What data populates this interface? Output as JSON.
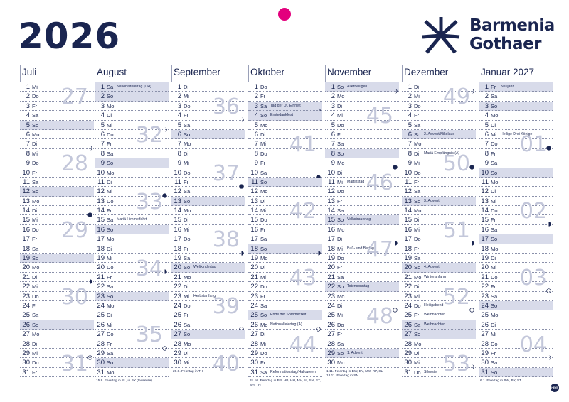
{
  "year": "2026",
  "brand": {
    "line1": "Barmenia",
    "line2": "Gothaer"
  },
  "publisher": "HEYE",
  "colors": {
    "navy": "#1a2550",
    "highlight": "#d8dbea",
    "week_number": "#c3c7da",
    "punch_hole": "#e3007d"
  },
  "months": [
    {
      "name": "Juli",
      "days": [
        {
          "n": "1",
          "w": "Mi"
        },
        {
          "n": "2",
          "w": "Do"
        },
        {
          "n": "3",
          "w": "Fr"
        },
        {
          "n": "4",
          "w": "Sa"
        },
        {
          "n": "5",
          "w": "So",
          "hl": true
        },
        {
          "n": "6",
          "w": "Mo"
        },
        {
          "n": "7",
          "w": "Di",
          "moon": "waning"
        },
        {
          "n": "8",
          "w": "Mi"
        },
        {
          "n": "9",
          "w": "Do"
        },
        {
          "n": "10",
          "w": "Fr"
        },
        {
          "n": "11",
          "w": "Sa"
        },
        {
          "n": "12",
          "w": "So",
          "hl": true
        },
        {
          "n": "13",
          "w": "Mo"
        },
        {
          "n": "14",
          "w": "Di",
          "moon": "new"
        },
        {
          "n": "15",
          "w": "Mi"
        },
        {
          "n": "16",
          "w": "Do"
        },
        {
          "n": "17",
          "w": "Fr"
        },
        {
          "n": "18",
          "w": "Sa"
        },
        {
          "n": "19",
          "w": "So",
          "hl": true
        },
        {
          "n": "20",
          "w": "Mo"
        },
        {
          "n": "21",
          "w": "Di",
          "moon": "waxing"
        },
        {
          "n": "22",
          "w": "Mi"
        },
        {
          "n": "23",
          "w": "Do"
        },
        {
          "n": "24",
          "w": "Fr"
        },
        {
          "n": "25",
          "w": "Sa"
        },
        {
          "n": "26",
          "w": "So",
          "hl": true
        },
        {
          "n": "27",
          "w": "Mo"
        },
        {
          "n": "28",
          "w": "Di"
        },
        {
          "n": "29",
          "w": "Mi",
          "moon": "full"
        },
        {
          "n": "30",
          "w": "Do"
        },
        {
          "n": "31",
          "w": "Fr"
        }
      ],
      "weeks": [
        {
          "label": "27",
          "row": 1
        },
        {
          "label": "28",
          "row": 8
        },
        {
          "label": "29",
          "row": 15
        },
        {
          "label": "30",
          "row": 22
        },
        {
          "label": "31",
          "row": 29
        }
      ],
      "note": ""
    },
    {
      "name": "August",
      "days": [
        {
          "n": "1",
          "w": "Sa",
          "hol": "Nationalfeiertag (CH)",
          "hl": true
        },
        {
          "n": "2",
          "w": "So",
          "hl": true
        },
        {
          "n": "3",
          "w": "Mo"
        },
        {
          "n": "4",
          "w": "Di"
        },
        {
          "n": "5",
          "w": "Mi",
          "moon": "waning"
        },
        {
          "n": "6",
          "w": "Do"
        },
        {
          "n": "7",
          "w": "Fr"
        },
        {
          "n": "8",
          "w": "Sa"
        },
        {
          "n": "9",
          "w": "So",
          "hl": true
        },
        {
          "n": "10",
          "w": "Mo"
        },
        {
          "n": "11",
          "w": "Di"
        },
        {
          "n": "12",
          "w": "Mi",
          "moon": "new"
        },
        {
          "n": "13",
          "w": "Do"
        },
        {
          "n": "14",
          "w": "Fr"
        },
        {
          "n": "15",
          "w": "Sa",
          "hol": "Mariä Himmelfahrt"
        },
        {
          "n": "16",
          "w": "So",
          "hl": true
        },
        {
          "n": "17",
          "w": "Mo"
        },
        {
          "n": "18",
          "w": "Di"
        },
        {
          "n": "19",
          "w": "Mi"
        },
        {
          "n": "20",
          "w": "Do",
          "moon": "waxing"
        },
        {
          "n": "21",
          "w": "Fr"
        },
        {
          "n": "22",
          "w": "Sa"
        },
        {
          "n": "23",
          "w": "So",
          "hl": true
        },
        {
          "n": "24",
          "w": "Mo"
        },
        {
          "n": "25",
          "w": "Di"
        },
        {
          "n": "26",
          "w": "Mi"
        },
        {
          "n": "27",
          "w": "Do"
        },
        {
          "n": "28",
          "w": "Fr",
          "moon": "full"
        },
        {
          "n": "29",
          "w": "Sa"
        },
        {
          "n": "30",
          "w": "So",
          "hl": true
        },
        {
          "n": "31",
          "w": "Mo"
        }
      ],
      "weeks": [
        {
          "label": "32",
          "row": 5
        },
        {
          "label": "33",
          "row": 12
        },
        {
          "label": "34",
          "row": 19
        },
        {
          "label": "35",
          "row": 26
        }
      ],
      "note": "15.8. Feiertag in SL, in BY (teilweise)"
    },
    {
      "name": "September",
      "days": [
        {
          "n": "1",
          "w": "Di"
        },
        {
          "n": "2",
          "w": "Mi"
        },
        {
          "n": "3",
          "w": "Do"
        },
        {
          "n": "4",
          "w": "Fr",
          "moon": "waning"
        },
        {
          "n": "5",
          "w": "Sa"
        },
        {
          "n": "6",
          "w": "So",
          "hl": true
        },
        {
          "n": "7",
          "w": "Mo"
        },
        {
          "n": "8",
          "w": "Di"
        },
        {
          "n": "9",
          "w": "Mi"
        },
        {
          "n": "10",
          "w": "Do"
        },
        {
          "n": "11",
          "w": "Fr",
          "moon": "new"
        },
        {
          "n": "12",
          "w": "Sa"
        },
        {
          "n": "13",
          "w": "So",
          "hl": true
        },
        {
          "n": "14",
          "w": "Mo"
        },
        {
          "n": "15",
          "w": "Di"
        },
        {
          "n": "16",
          "w": "Mi"
        },
        {
          "n": "17",
          "w": "Do"
        },
        {
          "n": "18",
          "w": "Fr",
          "moon": "waxing"
        },
        {
          "n": "19",
          "w": "Sa"
        },
        {
          "n": "20",
          "w": "So",
          "hol": "Weltkindertag",
          "hl": true
        },
        {
          "n": "21",
          "w": "Mo"
        },
        {
          "n": "22",
          "w": "Di"
        },
        {
          "n": "23",
          "w": "Mi",
          "hol": "Herbstanfang"
        },
        {
          "n": "24",
          "w": "Do"
        },
        {
          "n": "25",
          "w": "Fr"
        },
        {
          "n": "26",
          "w": "Sa",
          "moon": "full"
        },
        {
          "n": "27",
          "w": "So",
          "hl": true
        },
        {
          "n": "28",
          "w": "Mo"
        },
        {
          "n": "29",
          "w": "Di"
        },
        {
          "n": "30",
          "w": "Mi"
        }
      ],
      "weeks": [
        {
          "label": "36",
          "row": 2
        },
        {
          "label": "37",
          "row": 9
        },
        {
          "label": "38",
          "row": 16
        },
        {
          "label": "39",
          "row": 23
        },
        {
          "label": "40",
          "row": 29
        }
      ],
      "note": "20.9. Feiertag in TH"
    },
    {
      "name": "Oktober",
      "days": [
        {
          "n": "1",
          "w": "Do"
        },
        {
          "n": "2",
          "w": "Fr"
        },
        {
          "n": "3",
          "w": "Sa",
          "hol": "Tag der Dt. Einheit",
          "moon": "waning",
          "hl": true
        },
        {
          "n": "4",
          "w": "So",
          "hol": "Erntedankfest",
          "hl": true
        },
        {
          "n": "5",
          "w": "Mo"
        },
        {
          "n": "6",
          "w": "Di"
        },
        {
          "n": "7",
          "w": "Mi"
        },
        {
          "n": "8",
          "w": "Do"
        },
        {
          "n": "9",
          "w": "Fr"
        },
        {
          "n": "10",
          "w": "Sa",
          "moon": "new"
        },
        {
          "n": "11",
          "w": "So",
          "hl": true
        },
        {
          "n": "12",
          "w": "Mo"
        },
        {
          "n": "13",
          "w": "Di"
        },
        {
          "n": "14",
          "w": "Mi"
        },
        {
          "n": "15",
          "w": "Do"
        },
        {
          "n": "16",
          "w": "Fr"
        },
        {
          "n": "17",
          "w": "Sa"
        },
        {
          "n": "18",
          "w": "So",
          "moon": "waxing",
          "hl": true
        },
        {
          "n": "19",
          "w": "Mo"
        },
        {
          "n": "20",
          "w": "Di"
        },
        {
          "n": "21",
          "w": "Mi"
        },
        {
          "n": "22",
          "w": "Do"
        },
        {
          "n": "23",
          "w": "Fr"
        },
        {
          "n": "24",
          "w": "Sa"
        },
        {
          "n": "25",
          "w": "So",
          "hol": "Ende der Sommerzeit",
          "hl": true
        },
        {
          "n": "26",
          "w": "Mo",
          "hol": "Nationalfeiertag (A)",
          "moon": "full"
        },
        {
          "n": "27",
          "w": "Di"
        },
        {
          "n": "28",
          "w": "Mi"
        },
        {
          "n": "29",
          "w": "Do"
        },
        {
          "n": "30",
          "w": "Fr"
        },
        {
          "n": "31",
          "w": "Sa",
          "hol": "Reformationstag/Halloween"
        }
      ],
      "weeks": [
        {
          "label": "41",
          "row": 6
        },
        {
          "label": "42",
          "row": 13
        },
        {
          "label": "43",
          "row": 20
        },
        {
          "label": "44",
          "row": 27
        }
      ],
      "note": "31.10. Feiertag in BB, HB, HH, MV, NI, SN, ST, SH, TH"
    },
    {
      "name": "November",
      "days": [
        {
          "n": "1",
          "w": "So",
          "hol": "Allerheiligen",
          "moon": "waning",
          "hl": true
        },
        {
          "n": "2",
          "w": "Mo"
        },
        {
          "n": "3",
          "w": "Di"
        },
        {
          "n": "4",
          "w": "Mi"
        },
        {
          "n": "5",
          "w": "Do"
        },
        {
          "n": "6",
          "w": "Fr"
        },
        {
          "n": "7",
          "w": "Sa"
        },
        {
          "n": "8",
          "w": "So",
          "hl": true
        },
        {
          "n": "9",
          "w": "Mo",
          "moon": "new"
        },
        {
          "n": "10",
          "w": "Di"
        },
        {
          "n": "11",
          "w": "Mi",
          "hol": "Martinstag"
        },
        {
          "n": "12",
          "w": "Do"
        },
        {
          "n": "13",
          "w": "Fr"
        },
        {
          "n": "14",
          "w": "Sa"
        },
        {
          "n": "15",
          "w": "So",
          "hol": "Volkstrauertag",
          "hl": true
        },
        {
          "n": "16",
          "w": "Mo"
        },
        {
          "n": "17",
          "w": "Di",
          "moon": "waxing"
        },
        {
          "n": "18",
          "w": "Mi",
          "hol": "Buß- und Bettag"
        },
        {
          "n": "19",
          "w": "Do"
        },
        {
          "n": "20",
          "w": "Fr"
        },
        {
          "n": "21",
          "w": "Sa"
        },
        {
          "n": "22",
          "w": "So",
          "hol": "Totensonntag",
          "hl": true
        },
        {
          "n": "23",
          "w": "Mo"
        },
        {
          "n": "24",
          "w": "Di",
          "moon": "full"
        },
        {
          "n": "25",
          "w": "Mi"
        },
        {
          "n": "26",
          "w": "Do"
        },
        {
          "n": "27",
          "w": "Fr"
        },
        {
          "n": "28",
          "w": "Sa"
        },
        {
          "n": "29",
          "w": "So",
          "hol": "1. Advent",
          "hl": true
        },
        {
          "n": "30",
          "w": "Mo"
        }
      ],
      "weeks": [
        {
          "label": "45",
          "row": 3
        },
        {
          "label": "46",
          "row": 10
        },
        {
          "label": "47",
          "row": 17
        },
        {
          "label": "48",
          "row": 24
        }
      ],
      "note": "1.11. Feiertag in BW, BY, NW, RP, SL\n18.11. Feiertag in SN"
    },
    {
      "name": "Dezember",
      "days": [
        {
          "n": "1",
          "w": "Di",
          "moon": "waning"
        },
        {
          "n": "2",
          "w": "Mi"
        },
        {
          "n": "3",
          "w": "Do"
        },
        {
          "n": "4",
          "w": "Fr"
        },
        {
          "n": "5",
          "w": "Sa"
        },
        {
          "n": "6",
          "w": "So",
          "hol": "2. Advent/Nikolaus",
          "hl": true
        },
        {
          "n": "7",
          "w": "Mo"
        },
        {
          "n": "8",
          "w": "Di",
          "hol": "Mariä Empfängnis (A)"
        },
        {
          "n": "9",
          "w": "Mi",
          "moon": "new"
        },
        {
          "n": "10",
          "w": "Do"
        },
        {
          "n": "11",
          "w": "Fr"
        },
        {
          "n": "12",
          "w": "Sa"
        },
        {
          "n": "13",
          "w": "So",
          "hol": "3. Advent",
          "hl": true
        },
        {
          "n": "14",
          "w": "Mo"
        },
        {
          "n": "15",
          "w": "Di"
        },
        {
          "n": "16",
          "w": "Mi"
        },
        {
          "n": "17",
          "w": "Do",
          "moon": "waxing"
        },
        {
          "n": "18",
          "w": "Fr"
        },
        {
          "n": "19",
          "w": "Sa"
        },
        {
          "n": "20",
          "w": "So",
          "hol": "4. Advent",
          "hl": true
        },
        {
          "n": "21",
          "w": "Mo",
          "hol": "Winteranfang"
        },
        {
          "n": "22",
          "w": "Di"
        },
        {
          "n": "23",
          "w": "Mi"
        },
        {
          "n": "24",
          "w": "Do",
          "hol": "Heiligabend",
          "moon": "full"
        },
        {
          "n": "25",
          "w": "Fr",
          "hol": "Weihnachten"
        },
        {
          "n": "26",
          "w": "Sa",
          "hol": "Weihnachten",
          "hl": true
        },
        {
          "n": "27",
          "w": "So",
          "hl": true
        },
        {
          "n": "28",
          "w": "Mo"
        },
        {
          "n": "29",
          "w": "Di"
        },
        {
          "n": "30",
          "w": "Mi",
          "moon": "waning"
        },
        {
          "n": "31",
          "w": "Do",
          "hol": "Silvester"
        }
      ],
      "weeks": [
        {
          "label": "49",
          "row": 1
        },
        {
          "label": "50",
          "row": 8
        },
        {
          "label": "51",
          "row": 15
        },
        {
          "label": "52",
          "row": 22
        },
        {
          "label": "53",
          "row": 29
        }
      ],
      "note": ""
    },
    {
      "name": "Januar 2027",
      "days": [
        {
          "n": "1",
          "w": "Fr",
          "hol": "Neujahr",
          "hl": true
        },
        {
          "n": "2",
          "w": "Sa"
        },
        {
          "n": "3",
          "w": "So",
          "hl": true
        },
        {
          "n": "4",
          "w": "Mo"
        },
        {
          "n": "5",
          "w": "Di"
        },
        {
          "n": "6",
          "w": "Mi",
          "hol": "Heilige Drei Könige"
        },
        {
          "n": "7",
          "w": "Do",
          "moon": "new"
        },
        {
          "n": "8",
          "w": "Fr"
        },
        {
          "n": "9",
          "w": "Sa"
        },
        {
          "n": "10",
          "w": "So",
          "hl": true
        },
        {
          "n": "11",
          "w": "Mo"
        },
        {
          "n": "12",
          "w": "Di"
        },
        {
          "n": "13",
          "w": "Mi"
        },
        {
          "n": "14",
          "w": "Do"
        },
        {
          "n": "15",
          "w": "Fr",
          "moon": "waxing"
        },
        {
          "n": "16",
          "w": "Sa"
        },
        {
          "n": "17",
          "w": "So",
          "hl": true
        },
        {
          "n": "18",
          "w": "Mo"
        },
        {
          "n": "19",
          "w": "Di"
        },
        {
          "n": "20",
          "w": "Mi"
        },
        {
          "n": "21",
          "w": "Do"
        },
        {
          "n": "22",
          "w": "Fr",
          "moon": "full"
        },
        {
          "n": "23",
          "w": "Sa"
        },
        {
          "n": "24",
          "w": "So",
          "hl": true
        },
        {
          "n": "25",
          "w": "Mo"
        },
        {
          "n": "26",
          "w": "Di"
        },
        {
          "n": "27",
          "w": "Mi"
        },
        {
          "n": "28",
          "w": "Do"
        },
        {
          "n": "29",
          "w": "Fr",
          "moon": "waning"
        },
        {
          "n": "30",
          "w": "Sa"
        },
        {
          "n": "31",
          "w": "So",
          "hl": true
        }
      ],
      "weeks": [
        {
          "label": "01",
          "row": 6
        },
        {
          "label": "02",
          "row": 13
        },
        {
          "label": "03",
          "row": 20
        },
        {
          "label": "04",
          "row": 27
        }
      ],
      "note": "6.1. Feiertag in BW, BY, ST"
    }
  ]
}
